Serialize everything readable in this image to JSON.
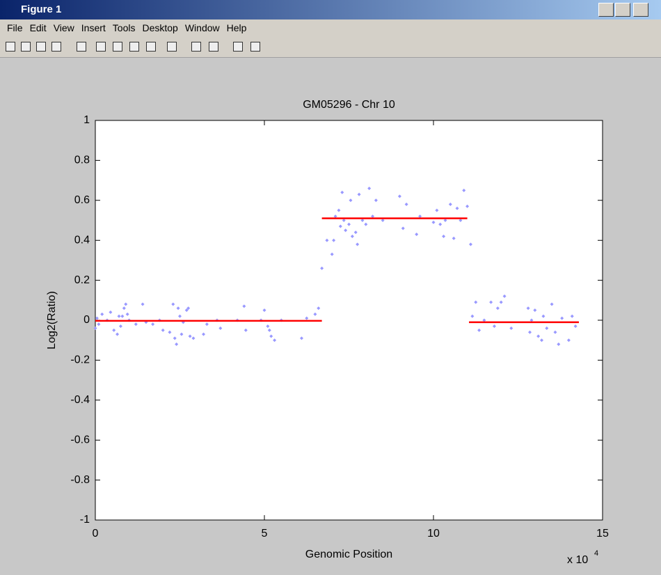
{
  "window": {
    "title": "Figure 1",
    "menu": [
      "File",
      "Edit",
      "View",
      "Insert",
      "Tools",
      "Desktop",
      "Window",
      "Help"
    ]
  },
  "chart_data": {
    "type": "scatter",
    "title": "GM05296 - Chr 10",
    "x_label": "Genomic Position",
    "y_label": "Log2(Ratio)",
    "x_multiplier": "x 10",
    "x_multiplier_exponent": "4",
    "xlim": [
      0,
      15
    ],
    "xticks": [
      0,
      5,
      10,
      15
    ],
    "ylim": [
      -1,
      1
    ],
    "yticks": [
      -1,
      -0.8,
      -0.6,
      -0.4,
      -0.2,
      0,
      0.2,
      0.4,
      0.6,
      0.8,
      1
    ],
    "series": [
      {
        "type": "scatter",
        "color": "#9999ff",
        "x": [
          0.0,
          0.05,
          0.1,
          0.2,
          0.35,
          0.45,
          0.55,
          0.65,
          0.7,
          0.75,
          0.8,
          0.85,
          0.9,
          0.95,
          1.0,
          1.2,
          1.4,
          1.5,
          1.7,
          1.9,
          2.0,
          2.2,
          2.3,
          2.35,
          2.4,
          2.45,
          2.5,
          2.55,
          2.6,
          2.7,
          2.75,
          2.8,
          2.9,
          3.2,
          3.3,
          3.6,
          3.7,
          4.2,
          4.4,
          4.45,
          4.9,
          5.0,
          5.1,
          5.15,
          5.2,
          5.3,
          5.5,
          6.1,
          6.25,
          6.5,
          6.6,
          6.7,
          6.85,
          7.0,
          7.05,
          7.1,
          7.2,
          7.25,
          7.3,
          7.35,
          7.4,
          7.5,
          7.55,
          7.6,
          7.7,
          7.75,
          7.8,
          7.9,
          8.0,
          8.1,
          8.2,
          8.3,
          8.5,
          9.0,
          9.1,
          9.2,
          9.5,
          9.6,
          10.0,
          10.1,
          10.2,
          10.3,
          10.35,
          10.5,
          10.6,
          10.7,
          10.8,
          10.9,
          11.0,
          11.1,
          11.15,
          11.25,
          11.35,
          11.5,
          11.7,
          11.8,
          11.9,
          12.0,
          12.1,
          12.3,
          12.8,
          12.85,
          12.9,
          13.0,
          13.1,
          13.2,
          13.25,
          13.35,
          13.5,
          13.6,
          13.7,
          13.8,
          14.0,
          14.1,
          14.2
        ],
        "values": [
          -0.04,
          0.01,
          -0.02,
          0.03,
          0.0,
          0.04,
          -0.05,
          -0.07,
          0.02,
          -0.03,
          0.02,
          0.06,
          0.08,
          0.03,
          0.0,
          -0.02,
          0.08,
          -0.01,
          -0.02,
          0.0,
          -0.05,
          -0.06,
          0.08,
          -0.09,
          -0.12,
          0.06,
          0.02,
          -0.07,
          -0.01,
          0.05,
          0.06,
          -0.08,
          -0.09,
          -0.07,
          -0.02,
          0.0,
          -0.04,
          0.0,
          0.07,
          -0.05,
          0.0,
          0.05,
          -0.03,
          -0.05,
          -0.08,
          -0.1,
          0.0,
          -0.09,
          0.01,
          0.03,
          0.06,
          0.26,
          0.4,
          0.33,
          0.4,
          0.52,
          0.55,
          0.47,
          0.64,
          0.5,
          0.45,
          0.48,
          0.6,
          0.42,
          0.44,
          0.38,
          0.63,
          0.5,
          0.48,
          0.66,
          0.52,
          0.6,
          0.5,
          0.62,
          0.46,
          0.58,
          0.43,
          0.52,
          0.49,
          0.55,
          0.48,
          0.42,
          0.5,
          0.58,
          0.41,
          0.56,
          0.5,
          0.65,
          0.57,
          0.38,
          0.02,
          0.09,
          -0.05,
          0.0,
          0.09,
          -0.03,
          0.06,
          0.09,
          0.12,
          -0.04,
          0.06,
          -0.06,
          0.0,
          0.05,
          -0.08,
          -0.1,
          0.02,
          -0.04,
          0.08,
          -0.06,
          -0.12,
          0.01,
          -0.1,
          0.02,
          -0.03
        ]
      },
      {
        "type": "line",
        "color": "#ff0000",
        "x": [
          0,
          6.7
        ],
        "values": [
          -0.003,
          -0.003
        ]
      },
      {
        "type": "line",
        "color": "#ff0000",
        "x": [
          6.7,
          11.0
        ],
        "values": [
          0.51,
          0.51
        ]
      },
      {
        "type": "line",
        "color": "#ff0000",
        "x": [
          11.05,
          14.3
        ],
        "values": [
          -0.01,
          -0.01
        ]
      }
    ]
  }
}
